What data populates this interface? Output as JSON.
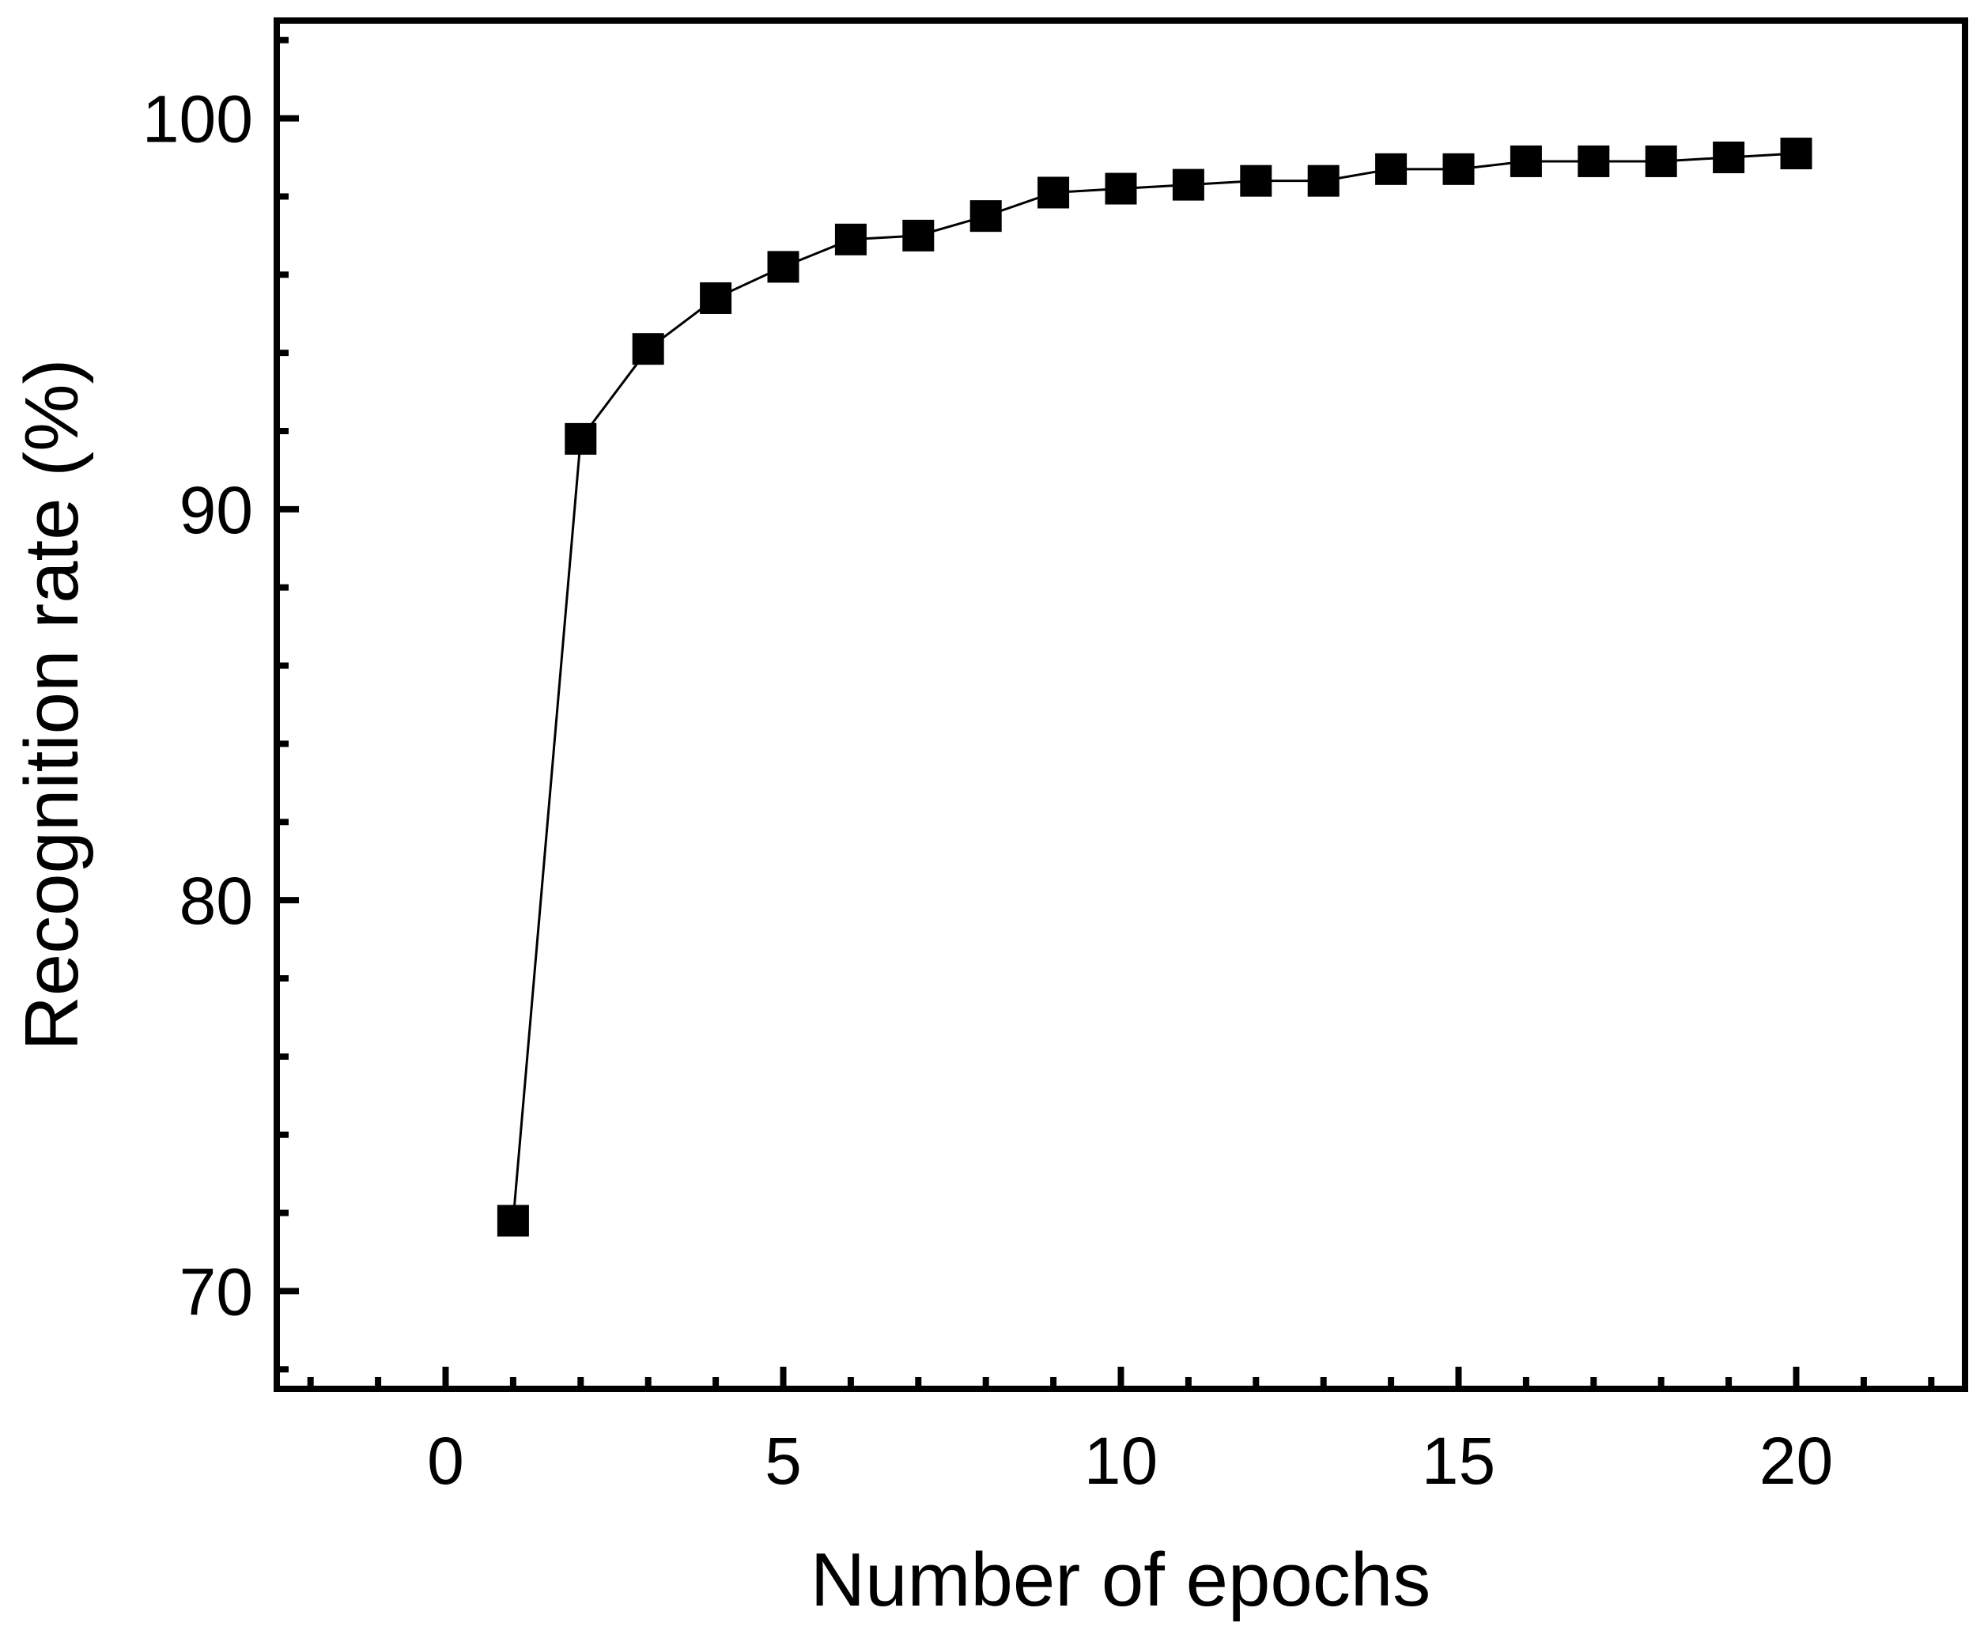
{
  "chart_data": {
    "type": "line",
    "title": "",
    "xlabel": "Number of epochs",
    "ylabel": "Recognition rate (%)",
    "xlim": [
      -2.5,
      22.5
    ],
    "ylim": [
      67.5,
      102.5
    ],
    "x_ticks": [
      0,
      5,
      10,
      15,
      20
    ],
    "y_ticks": [
      70,
      80,
      90,
      100
    ],
    "x_minor_step": 1,
    "y_minor_step": 2,
    "grid": false,
    "marker": "square",
    "series": [
      {
        "x": [
          1,
          2,
          3,
          4,
          5,
          6,
          7,
          8,
          9,
          10,
          11,
          12,
          13,
          14,
          15,
          16,
          17,
          18,
          19,
          20
        ],
        "values": [
          71.8,
          91.8,
          94.1,
          95.4,
          96.2,
          96.9,
          97.0,
          97.5,
          98.1,
          98.2,
          98.3,
          98.4,
          98.4,
          98.7,
          98.7,
          98.9,
          98.9,
          98.9,
          99.0,
          99.1
        ]
      }
    ],
    "colors": {
      "marker": "#000000",
      "line": "#000000",
      "axes": "#000000"
    }
  }
}
